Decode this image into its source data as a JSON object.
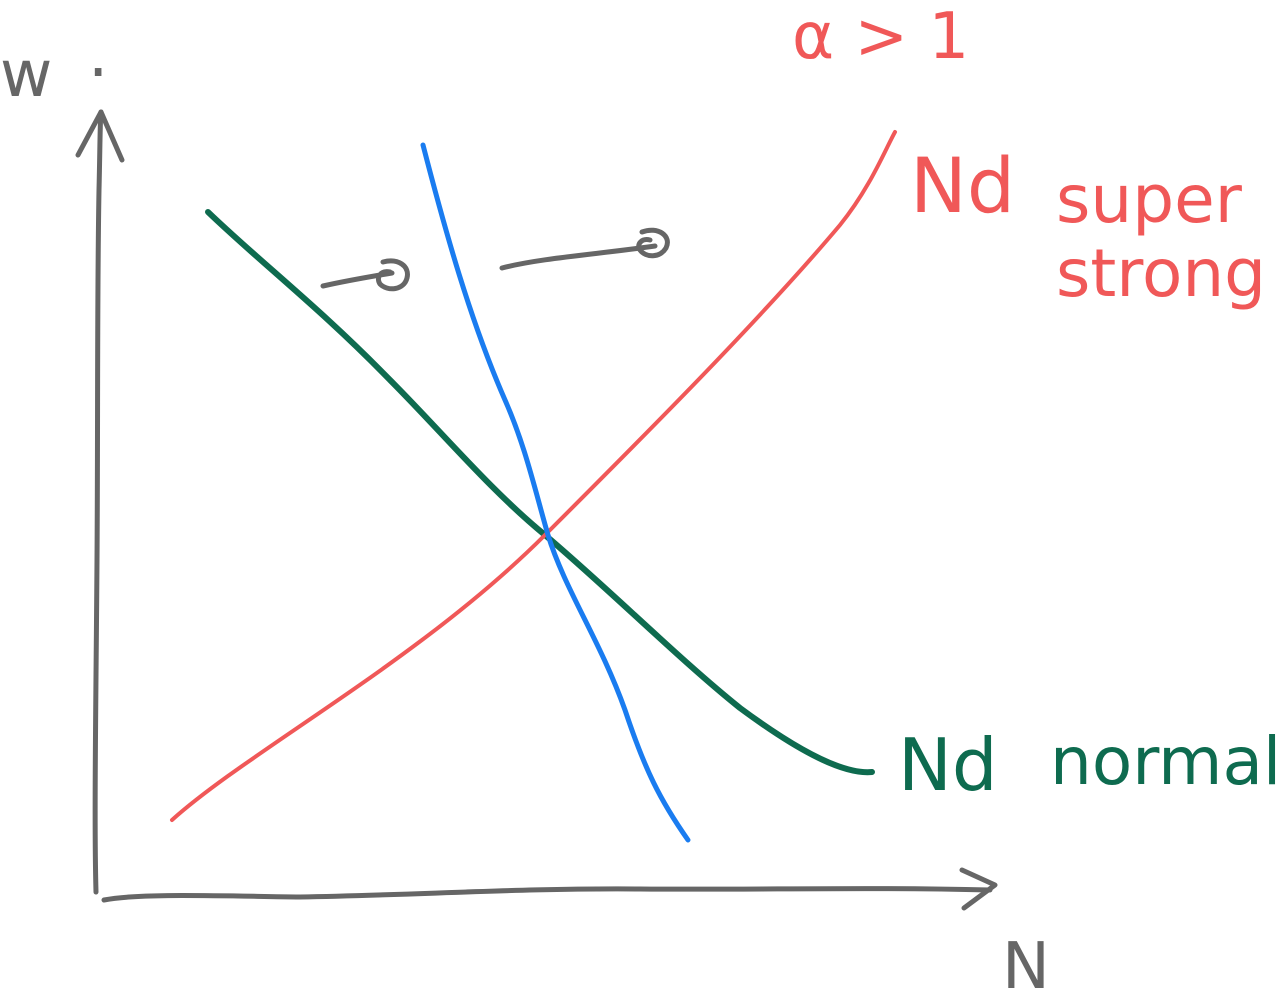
{
  "labels": {
    "y_axis": "w",
    "y_axis_mark": ".",
    "x_axis": "N",
    "alpha_condition": "α > 1",
    "red_curve": "Nd",
    "red_note_line1": "super",
    "red_note_line2": "strong",
    "green_curve": "Nd",
    "green_note": "normal"
  },
  "colors": {
    "axis": "#666666",
    "red": "#f05858",
    "green": "#0e6b4f",
    "blue": "#1a7cf0",
    "shift_arrow": "#666666"
  }
}
